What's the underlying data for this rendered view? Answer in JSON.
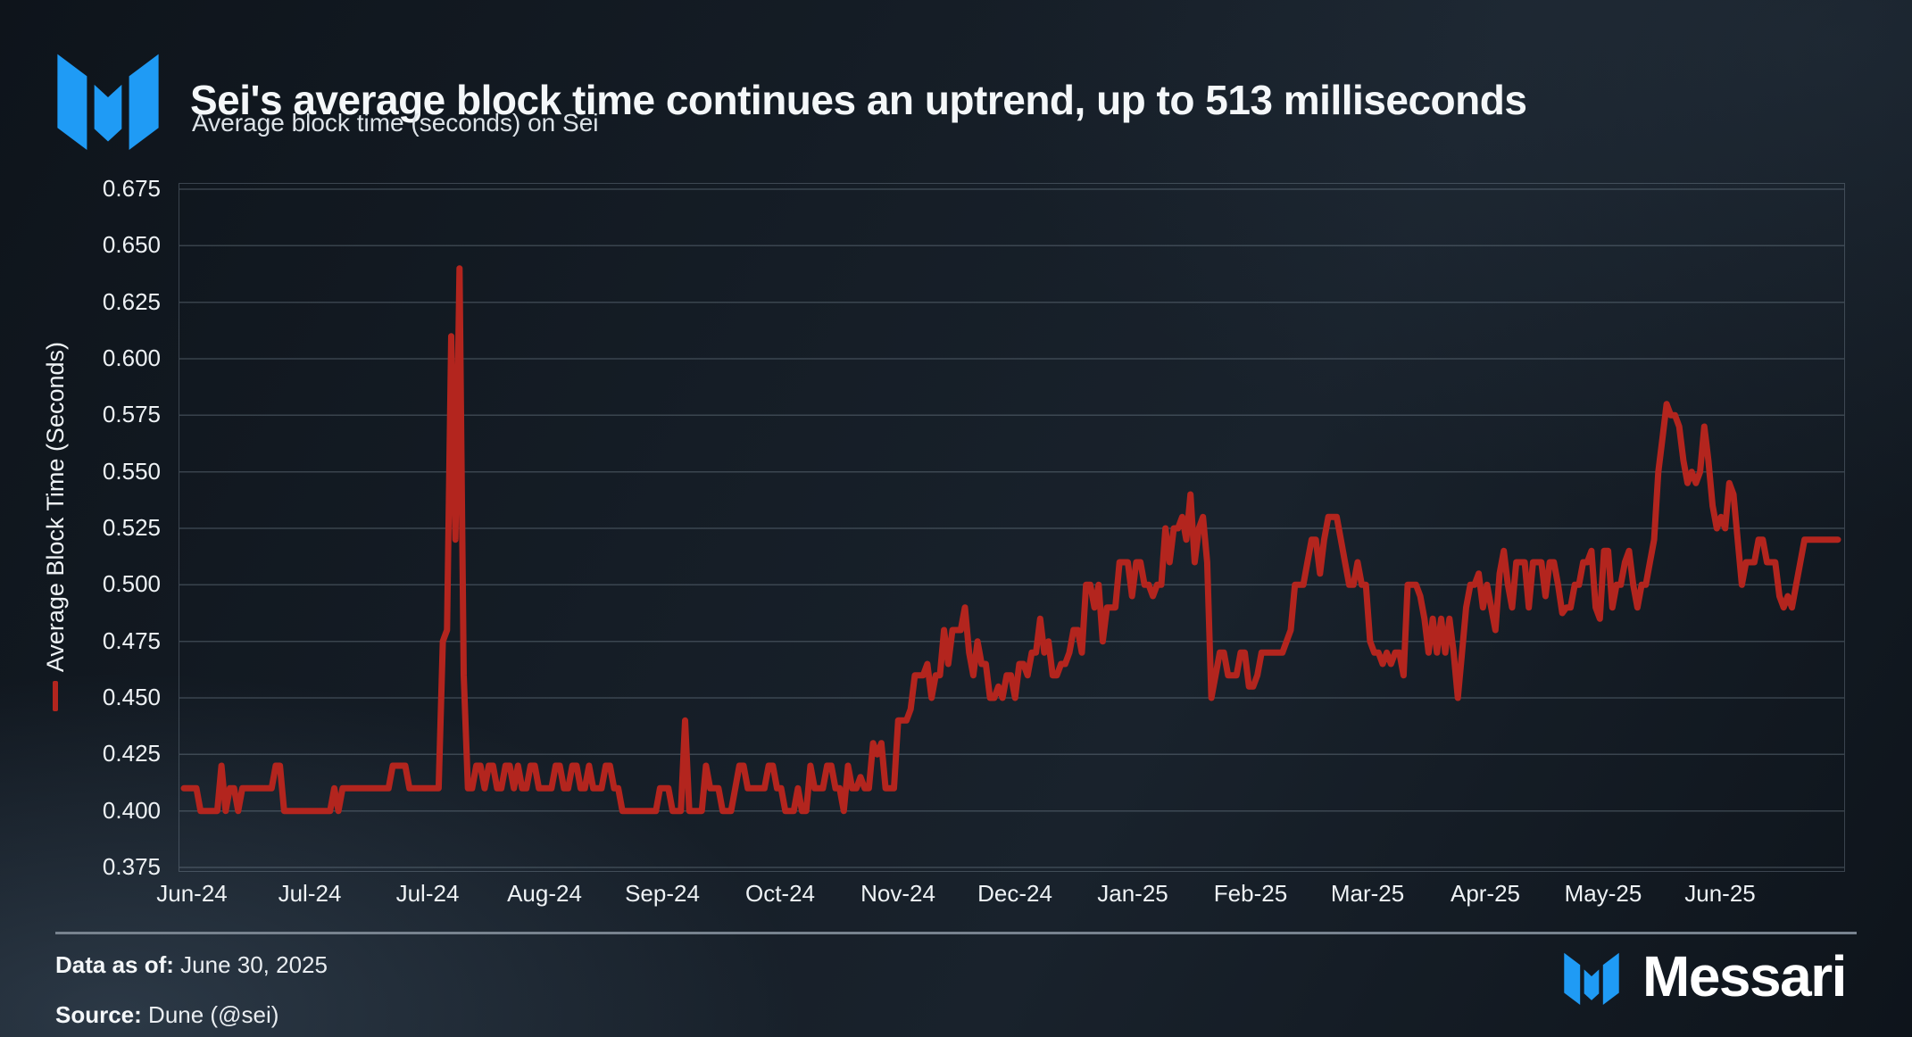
{
  "header": {
    "title": "Sei's average block time continues an uptrend, up to 513 milliseconds",
    "subtitle": "Average block time (seconds) on Sei"
  },
  "footer": {
    "data_as_of_label": "Data as of:",
    "data_as_of_value": "June 30, 2025",
    "source_label": "Source:",
    "source_value": "Dune (@sei)",
    "brand": "Messari"
  },
  "colors": {
    "brand_blue": "#1f9bf5",
    "line_red": "#b3251e",
    "grid": "rgba(150,165,180,0.30)",
    "text": "#eef2f5"
  },
  "chart_data": {
    "type": "line",
    "title": "Sei's average block time continues an uptrend, up to 513 milliseconds",
    "subtitle": "Average block time (seconds) on Sei",
    "ylabel": "Average Block Time (Seconds)",
    "legend_position": "left-rotated",
    "grid": "horizontal-only",
    "ylim": [
      0.375,
      0.675
    ],
    "ytick_labels": [
      "0.675",
      "0.650",
      "0.625",
      "0.600",
      "0.575",
      "0.550",
      "0.525",
      "0.500",
      "0.475",
      "0.450",
      "0.425",
      "0.400",
      "0.375"
    ],
    "x_total_days": 394,
    "xticks": [
      {
        "label": "Jun-24",
        "day": 2
      },
      {
        "label": "Jul-24",
        "day": 30
      },
      {
        "label": "Jul-24",
        "day": 58
      },
      {
        "label": "Aug-24",
        "day": 86
      },
      {
        "label": "Sep-24",
        "day": 114
      },
      {
        "label": "Oct-24",
        "day": 142
      },
      {
        "label": "Nov-24",
        "day": 170
      },
      {
        "label": "Dec-24",
        "day": 198
      },
      {
        "label": "Jan-25",
        "day": 226
      },
      {
        "label": "Feb-25",
        "day": 254
      },
      {
        "label": "Mar-25",
        "day": 282
      },
      {
        "label": "Apr-25",
        "day": 310
      },
      {
        "label": "May-25",
        "day": 338
      },
      {
        "label": "Jun-25",
        "day": 366
      }
    ],
    "series": [
      {
        "name": "Average Block Time (Seconds)",
        "color": "#b3251e",
        "runs": [
          [
            0.41,
            4
          ],
          [
            0.4,
            5
          ],
          [
            0.42,
            1
          ],
          [
            0.4,
            1
          ],
          [
            0.41,
            2
          ],
          [
            0.4,
            1
          ],
          [
            0.41,
            8
          ],
          [
            0.42,
            2
          ],
          [
            0.4,
            12
          ],
          [
            0.41,
            1
          ],
          [
            0.4,
            1
          ],
          [
            0.41,
            12
          ],
          [
            0.42,
            4
          ],
          [
            0.41,
            8
          ],
          [
            0.475,
            1
          ],
          [
            0.48,
            1
          ],
          [
            0.61,
            1
          ],
          [
            0.52,
            1
          ],
          [
            0.64,
            1
          ],
          [
            0.46,
            1
          ],
          [
            0.41,
            2
          ],
          [
            0.42,
            2
          ],
          [
            0.41,
            1
          ],
          [
            0.42,
            2
          ],
          [
            0.41,
            2
          ],
          [
            0.42,
            2
          ],
          [
            0.41,
            1
          ],
          [
            0.42,
            1
          ],
          [
            0.41,
            2
          ],
          [
            0.42,
            2
          ],
          [
            0.41,
            4
          ],
          [
            0.42,
            2
          ],
          [
            0.41,
            2
          ],
          [
            0.42,
            2
          ],
          [
            0.41,
            2
          ],
          [
            0.42,
            1
          ],
          [
            0.41,
            3
          ],
          [
            0.42,
            2
          ],
          [
            0.41,
            2
          ],
          [
            0.4,
            9
          ],
          [
            0.41,
            3
          ],
          [
            0.4,
            3
          ],
          [
            0.44,
            1
          ],
          [
            0.4,
            4
          ],
          [
            0.42,
            1
          ],
          [
            0.41,
            3
          ],
          [
            0.4,
            3
          ],
          [
            0.41,
            1
          ],
          [
            0.42,
            2
          ],
          [
            0.41,
            5
          ],
          [
            0.42,
            2
          ],
          [
            0.41,
            2
          ],
          [
            0.4,
            3
          ],
          [
            0.41,
            1
          ],
          [
            0.4,
            2
          ],
          [
            0.42,
            1
          ],
          [
            0.41,
            3
          ],
          [
            0.42,
            2
          ],
          [
            0.41,
            2
          ],
          [
            0.4,
            1
          ],
          [
            0.42,
            1
          ],
          [
            0.41,
            2
          ],
          [
            0.415,
            1
          ],
          [
            0.41,
            2
          ],
          [
            0.43,
            1
          ],
          [
            0.425,
            1
          ],
          [
            0.43,
            1
          ],
          [
            0.41,
            3
          ],
          [
            0.44,
            3
          ],
          [
            0.445,
            1
          ],
          [
            0.46,
            1
          ],
          [
            0.46,
            2
          ],
          [
            0.465,
            1
          ],
          [
            0.45,
            1
          ],
          [
            0.46,
            2
          ],
          [
            0.48,
            1
          ],
          [
            0.465,
            1
          ],
          [
            0.48,
            3
          ],
          [
            0.49,
            1
          ],
          [
            0.47,
            1
          ],
          [
            0.46,
            1
          ],
          [
            0.475,
            1
          ],
          [
            0.465,
            2
          ],
          [
            0.45,
            2
          ],
          [
            0.455,
            1
          ],
          [
            0.45,
            1
          ],
          [
            0.46,
            2
          ],
          [
            0.45,
            1
          ],
          [
            0.465,
            2
          ],
          [
            0.46,
            1
          ],
          [
            0.47,
            2
          ],
          [
            0.485,
            1
          ],
          [
            0.47,
            1
          ],
          [
            0.475,
            1
          ],
          [
            0.46,
            2
          ],
          [
            0.465,
            2
          ],
          [
            0.47,
            1
          ],
          [
            0.48,
            2
          ],
          [
            0.47,
            1
          ],
          [
            0.5,
            2
          ],
          [
            0.49,
            1
          ],
          [
            0.5,
            1
          ],
          [
            0.475,
            1
          ],
          [
            0.49,
            3
          ],
          [
            0.51,
            3
          ],
          [
            0.495,
            1
          ],
          [
            0.51,
            2
          ],
          [
            0.5,
            2
          ],
          [
            0.495,
            1
          ],
          [
            0.5,
            2
          ],
          [
            0.525,
            1
          ],
          [
            0.51,
            1
          ],
          [
            0.525,
            2
          ],
          [
            0.53,
            1
          ],
          [
            0.52,
            1
          ],
          [
            0.54,
            1
          ],
          [
            0.51,
            1
          ],
          [
            0.525,
            1
          ],
          [
            0.53,
            1
          ],
          [
            0.51,
            1
          ],
          [
            0.45,
            1
          ],
          [
            0.46,
            1
          ],
          [
            0.47,
            2
          ],
          [
            0.46,
            3
          ],
          [
            0.47,
            2
          ],
          [
            0.455,
            2
          ],
          [
            0.46,
            1
          ],
          [
            0.47,
            6
          ],
          [
            0.475,
            1
          ],
          [
            0.48,
            1
          ],
          [
            0.5,
            3
          ],
          [
            0.51,
            1
          ],
          [
            0.52,
            2
          ],
          [
            0.505,
            1
          ],
          [
            0.52,
            1
          ],
          [
            0.53,
            3
          ],
          [
            0.52,
            1
          ],
          [
            0.51,
            1
          ],
          [
            0.5,
            2
          ],
          [
            0.51,
            1
          ],
          [
            0.5,
            2
          ],
          [
            0.475,
            1
          ],
          [
            0.47,
            2
          ],
          [
            0.465,
            1
          ],
          [
            0.47,
            1
          ],
          [
            0.465,
            1
          ],
          [
            0.47,
            2
          ],
          [
            0.46,
            1
          ],
          [
            0.5,
            3
          ],
          [
            0.495,
            1
          ],
          [
            0.485,
            1
          ],
          [
            0.47,
            1
          ],
          [
            0.485,
            1
          ],
          [
            0.47,
            1
          ],
          [
            0.485,
            1
          ],
          [
            0.47,
            1
          ],
          [
            0.485,
            1
          ],
          [
            0.47,
            1
          ],
          [
            0.45,
            1
          ],
          [
            0.47,
            1
          ],
          [
            0.49,
            1
          ],
          [
            0.5,
            2
          ],
          [
            0.505,
            1
          ],
          [
            0.49,
            1
          ],
          [
            0.5,
            1
          ],
          [
            0.49,
            1
          ],
          [
            0.48,
            1
          ],
          [
            0.505,
            1
          ],
          [
            0.515,
            1
          ],
          [
            0.5,
            1
          ],
          [
            0.49,
            1
          ],
          [
            0.51,
            3
          ],
          [
            0.49,
            1
          ],
          [
            0.51,
            3
          ],
          [
            0.495,
            1
          ],
          [
            0.51,
            2
          ],
          [
            0.5,
            1
          ],
          [
            0.4875,
            1
          ],
          [
            0.49,
            2
          ],
          [
            0.5,
            2
          ],
          [
            0.51,
            2
          ],
          [
            0.515,
            1
          ],
          [
            0.49,
            1
          ],
          [
            0.485,
            1
          ],
          [
            0.515,
            2
          ],
          [
            0.49,
            1
          ],
          [
            0.5,
            2
          ],
          [
            0.51,
            1
          ],
          [
            0.515,
            1
          ],
          [
            0.5,
            1
          ],
          [
            0.49,
            1
          ],
          [
            0.5,
            1
          ],
          [
            0.5,
            1
          ],
          [
            0.51,
            1
          ],
          [
            0.52,
            1
          ],
          [
            0.55,
            1
          ],
          [
            0.565,
            1
          ],
          [
            0.58,
            1
          ],
          [
            0.575,
            2
          ],
          [
            0.57,
            1
          ],
          [
            0.555,
            1
          ],
          [
            0.545,
            1
          ],
          [
            0.55,
            1
          ],
          [
            0.545,
            1
          ],
          [
            0.55,
            1
          ],
          [
            0.57,
            1
          ],
          [
            0.555,
            1
          ],
          [
            0.535,
            1
          ],
          [
            0.525,
            1
          ],
          [
            0.53,
            1
          ],
          [
            0.525,
            1
          ],
          [
            0.545,
            1
          ],
          [
            0.54,
            1
          ],
          [
            0.52,
            1
          ],
          [
            0.5,
            1
          ],
          [
            0.51,
            3
          ],
          [
            0.52,
            2
          ],
          [
            0.51,
            3
          ],
          [
            0.495,
            1
          ],
          [
            0.49,
            1
          ],
          [
            0.495,
            1
          ],
          [
            0.49,
            1
          ],
          [
            0.5,
            1
          ],
          [
            0.51,
            1
          ],
          [
            0.52,
            9
          ]
        ]
      }
    ]
  }
}
